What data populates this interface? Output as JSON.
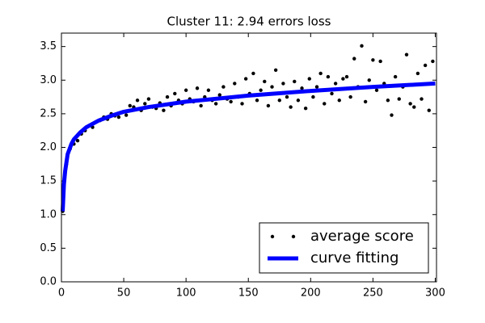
{
  "chart_data": {
    "type": "scatter",
    "title": "Cluster 11: 2.94 errors loss",
    "xlim": [
      0,
      301
    ],
    "ylim": [
      0,
      3.7
    ],
    "xticks": [
      0,
      50,
      100,
      150,
      200,
      250,
      300
    ],
    "yticks": [
      {
        "value": 0,
        "label": "0.0"
      },
      0.5,
      {
        "value": 1,
        "label": "1.0"
      },
      1.5,
      {
        "value": 2,
        "label": "2.0"
      },
      2.5,
      {
        "value": 3,
        "label": "3.0"
      },
      3.5
    ],
    "legend": "lower right",
    "series": [
      {
        "name": "average score",
        "type": "scatter",
        "color": "#000000",
        "x": [
          1,
          4,
          7,
          10,
          13,
          16,
          19,
          22,
          25,
          28,
          31,
          34,
          37,
          40,
          43,
          46,
          49,
          52,
          55,
          58,
          61,
          64,
          67,
          70,
          73,
          76,
          79,
          82,
          85,
          88,
          91,
          94,
          97,
          100,
          103,
          106,
          109,
          112,
          115,
          118,
          121,
          124,
          127,
          130,
          133,
          136,
          139,
          142,
          145,
          148,
          151,
          154,
          157,
          160,
          163,
          166,
          169,
          172,
          175,
          178,
          181,
          184,
          187,
          190,
          193,
          196,
          199,
          202,
          205,
          208,
          211,
          214,
          217,
          220,
          223,
          226,
          229,
          232,
          235,
          238,
          241,
          244,
          247,
          250,
          253,
          256,
          259,
          262,
          265,
          268,
          271,
          274,
          277,
          280,
          283,
          286,
          289,
          292,
          295,
          298
        ],
        "values": [
          1.05,
          1.75,
          1.98,
          2.05,
          2.1,
          2.2,
          2.25,
          2.32,
          2.3,
          2.38,
          2.4,
          2.45,
          2.42,
          2.5,
          2.47,
          2.45,
          2.52,
          2.48,
          2.62,
          2.6,
          2.7,
          2.55,
          2.65,
          2.72,
          2.6,
          2.58,
          2.66,
          2.55,
          2.75,
          2.62,
          2.8,
          2.7,
          2.65,
          2.85,
          2.72,
          2.68,
          2.88,
          2.62,
          2.75,
          2.85,
          2.7,
          2.65,
          2.78,
          2.9,
          2.72,
          2.68,
          2.95,
          2.75,
          2.65,
          3.02,
          2.8,
          3.1,
          2.7,
          2.85,
          2.98,
          2.62,
          2.9,
          3.15,
          2.7,
          2.95,
          2.75,
          2.6,
          2.98,
          2.7,
          2.88,
          2.58,
          3.02,
          2.75,
          2.9,
          3.1,
          2.65,
          3.05,
          2.8,
          2.95,
          2.7,
          3.02,
          3.05,
          2.75,
          3.32,
          2.9,
          3.51,
          2.68,
          3.0,
          3.3,
          2.85,
          3.28,
          2.95,
          2.7,
          2.48,
          3.05,
          2.72,
          2.9,
          3.38,
          2.65,
          2.6,
          3.1,
          2.72,
          3.22,
          2.55,
          3.28
        ]
      },
      {
        "name": "curve fitting",
        "type": "line",
        "color": "#0000ff",
        "x": [
          1,
          2,
          3,
          5,
          8,
          10,
          15,
          20,
          30,
          40,
          50,
          70,
          100,
          150,
          200,
          250,
          300
        ],
        "values": [
          1.05,
          1.45,
          1.65,
          1.9,
          2.05,
          2.12,
          2.22,
          2.3,
          2.4,
          2.47,
          2.53,
          2.6,
          2.68,
          2.77,
          2.84,
          2.9,
          2.95
        ]
      }
    ]
  }
}
